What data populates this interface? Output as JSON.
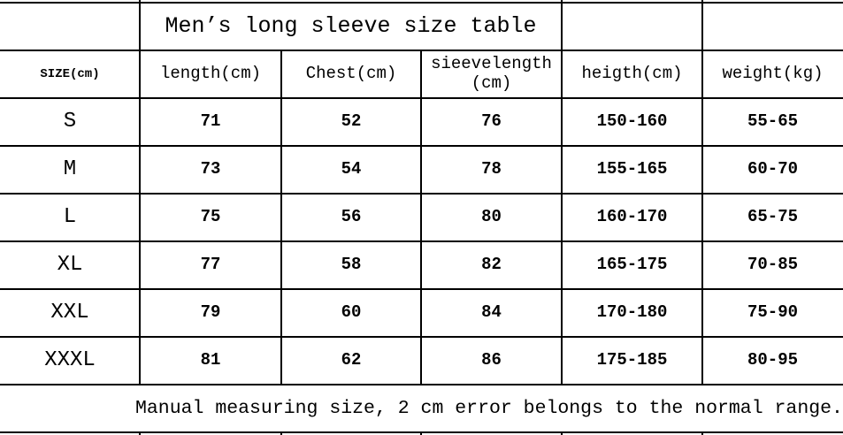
{
  "title": "Men’s long sleeve size table",
  "headers": [
    "SIZE(cm)",
    "length(cm)",
    "Chest(cm)",
    "sieevelength (cm)",
    "heigth(cm)",
    "weight(kg)"
  ],
  "rows": [
    [
      "S",
      "71",
      "52",
      "76",
      "150-160",
      "55-65"
    ],
    [
      "M",
      "73",
      "54",
      "78",
      "155-165",
      "60-70"
    ],
    [
      "L",
      "75",
      "56",
      "80",
      "160-170",
      "65-75"
    ],
    [
      "XL",
      "77",
      "58",
      "82",
      "165-175",
      "70-85"
    ],
    [
      "XXL",
      "79",
      "60",
      "84",
      "170-180",
      "75-90"
    ],
    [
      "XXXL",
      "81",
      "62",
      "86",
      "175-185",
      "80-95"
    ]
  ],
  "footnote": "Manual measuring size, 2 cm error belongs to the normal range."
}
